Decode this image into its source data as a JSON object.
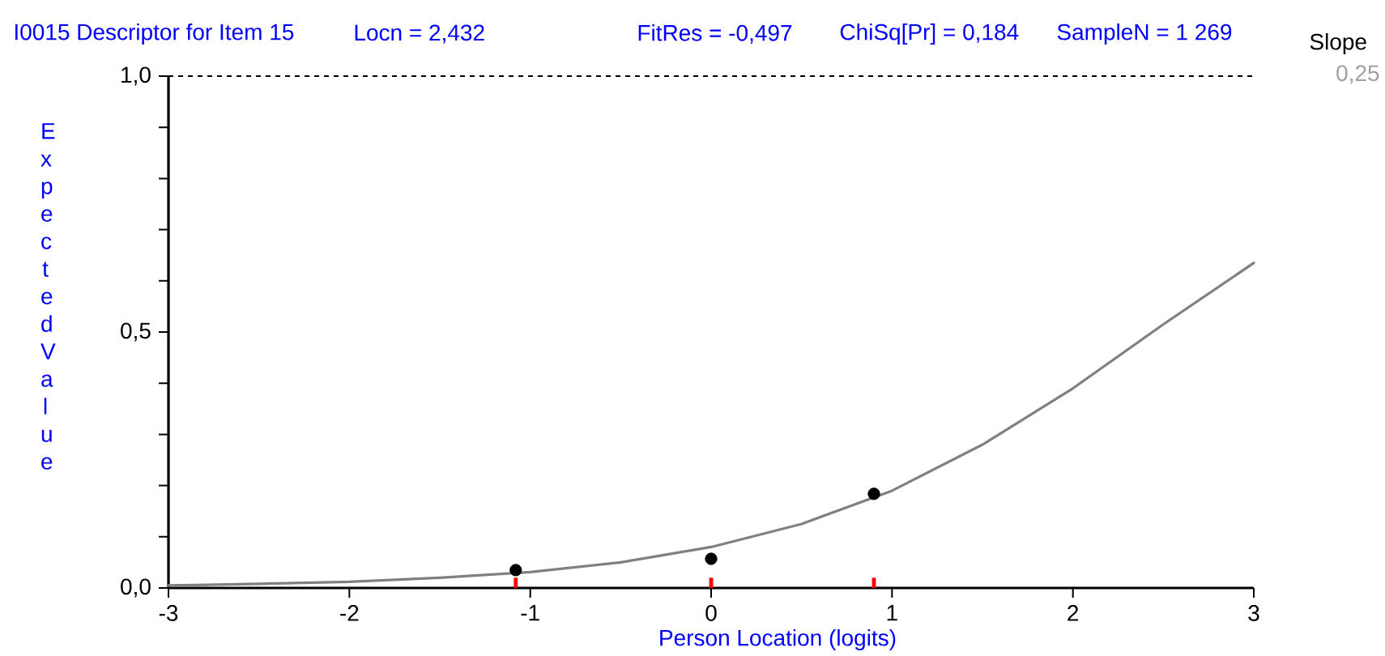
{
  "chart_data": {
    "type": "line",
    "title": "I0015 Descriptor for Item 15",
    "xlabel": "Person Location (logits)",
    "ylabel": "Expected Value",
    "annotations": [
      "Locn = 2,432",
      "FitRes = -0,497",
      "ChiSq[Pr] = 0,184",
      "SampleN = 1 269",
      "Slope",
      "0,25"
    ],
    "series": [
      {
        "color": "#808080",
        "x": [
          -3,
          -2.5,
          -2,
          -1.5,
          -1,
          -0.5,
          0,
          0.5,
          1,
          1.5,
          2,
          2.5,
          3
        ],
        "values": [
          0.005,
          0.008,
          0.012,
          0.02,
          0.031,
          0.05,
          0.08,
          0.125,
          0.19,
          0.28,
          0.39,
          0.515,
          0.635
        ]
      },
      {
        "type": "scatter",
        "color": "#000000",
        "marker": "circle",
        "x": [
          -1.08,
          0,
          0.9
        ],
        "values": [
          0.035,
          0.057,
          0.184
        ]
      },
      {
        "type": "bar",
        "color": "#ff0000",
        "x": [
          -1.08,
          0,
          0.9
        ],
        "values": [
          0.02,
          0.02,
          0.02
        ]
      }
    ],
    "xlim": [
      -3,
      3
    ],
    "ylim": [
      0,
      1
    ],
    "xticks": [
      -3,
      -2,
      -1,
      0,
      1,
      2,
      3
    ],
    "yticks": [
      {
        "value": 0,
        "label": "0,0"
      },
      {
        "value": 0.1,
        "label": null
      },
      {
        "value": 0.2,
        "label": null
      },
      {
        "value": 0.3,
        "label": null
      },
      {
        "value": 0.4,
        "label": null
      },
      {
        "value": 0.5,
        "label": "0,5"
      },
      {
        "value": 0.6,
        "label": null
      },
      {
        "value": 0.7,
        "label": null
      },
      {
        "value": 0.8,
        "label": null
      },
      {
        "value": 0.9,
        "label": null
      },
      {
        "value": 1,
        "label": "1,0"
      }
    ],
    "ref_lines": [
      {
        "axis": "y",
        "value": 1,
        "color": "#000000",
        "line_style": "dashed"
      }
    ]
  }
}
